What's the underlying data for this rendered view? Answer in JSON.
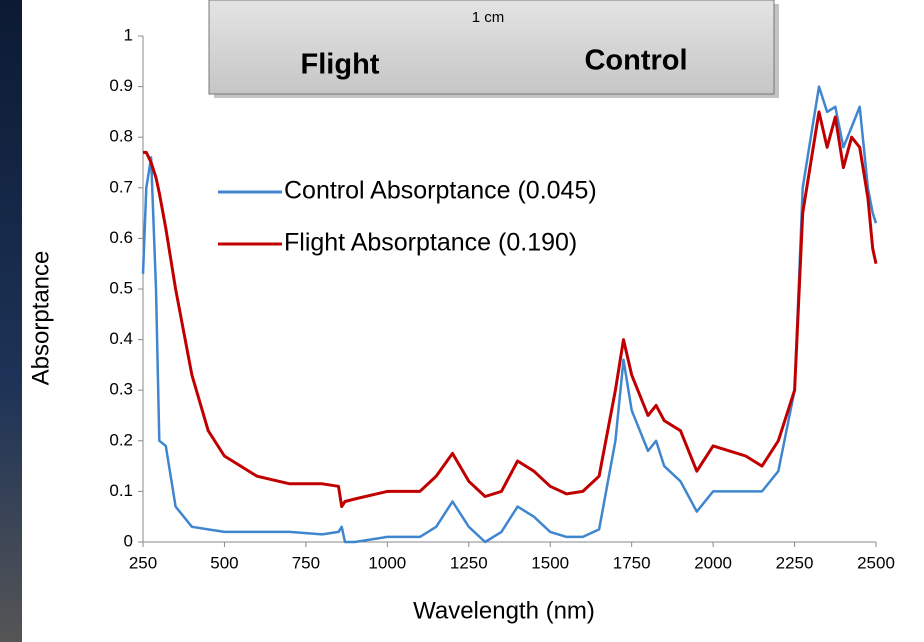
{
  "chart_data": {
    "type": "line",
    "annotations": [
      "1 cm",
      "Flight",
      "Control"
    ],
    "xlabel": "Wavelength (nm)",
    "ylabel": "Absorptance",
    "x": [
      250,
      260,
      275,
      290,
      300,
      320,
      350,
      400,
      450,
      500,
      600,
      700,
      800,
      850,
      860,
      870,
      900,
      1000,
      1100,
      1150,
      1200,
      1250,
      1300,
      1350,
      1400,
      1450,
      1500,
      1550,
      1600,
      1650,
      1700,
      1725,
      1750,
      1800,
      1825,
      1850,
      1900,
      1950,
      2000,
      2050,
      2100,
      2150,
      2200,
      2250,
      2275,
      2300,
      2325,
      2350,
      2375,
      2400,
      2425,
      2450,
      2475,
      2490,
      2500
    ],
    "series": [
      {
        "name": "Control Absorptance (0.045)",
        "color": "#3f86cf",
        "values": [
          0.53,
          0.7,
          0.76,
          0.5,
          0.2,
          0.19,
          0.07,
          0.03,
          0.025,
          0.02,
          0.02,
          0.02,
          0.015,
          0.02,
          0.03,
          0.0,
          0.0,
          0.01,
          0.01,
          0.03,
          0.08,
          0.03,
          0.0,
          0.02,
          0.07,
          0.05,
          0.02,
          0.01,
          0.01,
          0.025,
          0.2,
          0.36,
          0.26,
          0.18,
          0.2,
          0.15,
          0.12,
          0.06,
          0.1,
          0.1,
          0.1,
          0.1,
          0.14,
          0.3,
          0.7,
          0.8,
          0.9,
          0.85,
          0.86,
          0.78,
          0.82,
          0.86,
          0.7,
          0.65,
          0.63
        ]
      },
      {
        "name": "Flight Absorptance (0.190)",
        "color": "#c00000",
        "values": [
          0.77,
          0.77,
          0.75,
          0.72,
          0.69,
          0.62,
          0.5,
          0.33,
          0.22,
          0.17,
          0.13,
          0.115,
          0.115,
          0.11,
          0.07,
          0.08,
          0.085,
          0.1,
          0.1,
          0.13,
          0.175,
          0.12,
          0.09,
          0.1,
          0.16,
          0.14,
          0.11,
          0.095,
          0.1,
          0.13,
          0.3,
          0.4,
          0.33,
          0.25,
          0.27,
          0.24,
          0.22,
          0.14,
          0.19,
          0.18,
          0.17,
          0.15,
          0.2,
          0.3,
          0.65,
          0.75,
          0.85,
          0.78,
          0.84,
          0.74,
          0.8,
          0.78,
          0.68,
          0.58,
          0.55
        ]
      }
    ],
    "xlim": [
      250,
      2500
    ],
    "xticks": [
      250,
      500,
      750,
      1000,
      1250,
      1500,
      1750,
      2000,
      2250,
      2500
    ],
    "ylim": [
      0,
      1
    ],
    "yticks": [
      0,
      0.1,
      0.2,
      0.3,
      0.4,
      0.5,
      0.6,
      0.7,
      0.8,
      0.9,
      1
    ],
    "grid": false
  }
}
